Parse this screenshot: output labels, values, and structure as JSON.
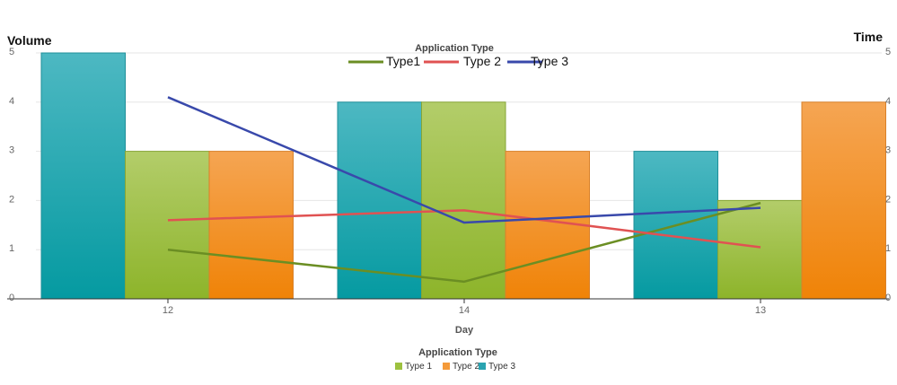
{
  "chart_data": {
    "type": "bar",
    "categories": [
      "12",
      "14",
      "13"
    ],
    "xlabel": "Day",
    "y_left_label": "Volume",
    "y_right_label": "Time",
    "ylim": [
      0,
      5
    ],
    "y2lim": [
      0,
      5
    ],
    "yticks": [
      "0",
      "1",
      "2",
      "3",
      "4",
      "5"
    ],
    "y2ticks": [
      "0",
      "1",
      "2",
      "3",
      "4",
      "5"
    ],
    "grid": true,
    "bar_series": [
      {
        "name": "Type 3",
        "color": "#2aa3b0",
        "values": [
          5,
          4,
          3
        ]
      },
      {
        "name": "Type 1",
        "color": "#9dc13f",
        "values": [
          3,
          4,
          2
        ]
      },
      {
        "name": "Type 2",
        "color": "#f49a3a",
        "values": [
          3,
          3,
          4
        ]
      }
    ],
    "line_series": [
      {
        "name": "Type1",
        "color": "#6b8e23",
        "values": [
          1.0,
          0.35,
          1.95
        ]
      },
      {
        "name": "Type 2",
        "color": "#e05252",
        "values": [
          1.6,
          1.8,
          1.05
        ]
      },
      {
        "name": "Type 3",
        "color": "#3949ab",
        "values": [
          4.1,
          1.55,
          1.85
        ]
      }
    ],
    "legend_top": {
      "title": "Application Type",
      "placement": "top-center",
      "items": [
        "Type1",
        "Type 2",
        "Type 3"
      ]
    },
    "legend_bottom": {
      "title": "Application Type",
      "placement": "bottom-center",
      "items": [
        "Type 1",
        "Type 2",
        "Type 3"
      ]
    }
  }
}
